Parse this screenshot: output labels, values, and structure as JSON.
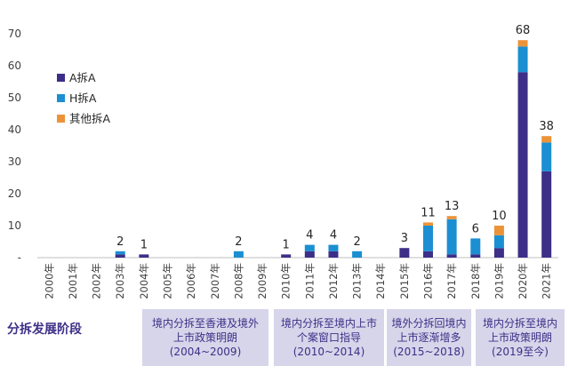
{
  "chart_data": {
    "type": "bar",
    "stacked": true,
    "categories": [
      "2000年",
      "2001年",
      "2002年",
      "2003年",
      "2004年",
      "2005年",
      "2006年",
      "2007年",
      "2008年",
      "2009年",
      "2010年",
      "2011年",
      "2012年",
      "2013年",
      "2014年",
      "2015年",
      "2016年",
      "2017年",
      "2018年",
      "2019年",
      "2020年",
      "2021年"
    ],
    "series": [
      {
        "name": "A拆A",
        "color": "#3d2f87",
        "values": [
          0,
          0,
          0,
          1,
          1,
          0,
          0,
          0,
          0,
          0,
          1,
          2,
          2,
          0,
          0,
          3,
          2,
          1,
          1,
          3,
          58,
          27
        ]
      },
      {
        "name": "H拆A",
        "color": "#1b8fd2",
        "values": [
          0,
          0,
          0,
          1,
          0,
          0,
          0,
          0,
          2,
          0,
          0,
          2,
          2,
          2,
          0,
          0,
          8,
          11,
          5,
          4,
          8,
          9
        ]
      },
      {
        "name": "其他拆A",
        "color": "#ec9338",
        "values": [
          0,
          0,
          0,
          0,
          0,
          0,
          0,
          0,
          0,
          0,
          0,
          0,
          0,
          0,
          0,
          0,
          1,
          1,
          0,
          3,
          2,
          2
        ]
      }
    ],
    "totals": [
      "",
      "",
      "",
      "2",
      "1",
      "",
      "",
      "",
      "2",
      "",
      "1",
      "4",
      "4",
      "2",
      "",
      "3",
      "11",
      "13",
      "6",
      "10",
      "68",
      "38"
    ],
    "y_ticks": [
      "-",
      "10",
      "20",
      "30",
      "40",
      "50",
      "60",
      "70"
    ],
    "ylim": [
      0,
      75
    ],
    "grid": false,
    "legend_position": "top-left"
  },
  "stages": {
    "label": "分拆发展阶段",
    "items": [
      {
        "line1": "境内分拆至香港及境外",
        "line2": "上市政策明朗",
        "line3": "(2004~2009)"
      },
      {
        "line1": "境内分拆至境内上市",
        "line2": "个案窗口指导",
        "line3": "(2010~2014)"
      },
      {
        "line1": "境外分拆回境内",
        "line2": "上市逐渐增多",
        "line3": "(2015~2018)"
      },
      {
        "line1": "境内分拆至境内",
        "line2": "上市政策明朗",
        "line3": "(2019至今)"
      }
    ]
  }
}
